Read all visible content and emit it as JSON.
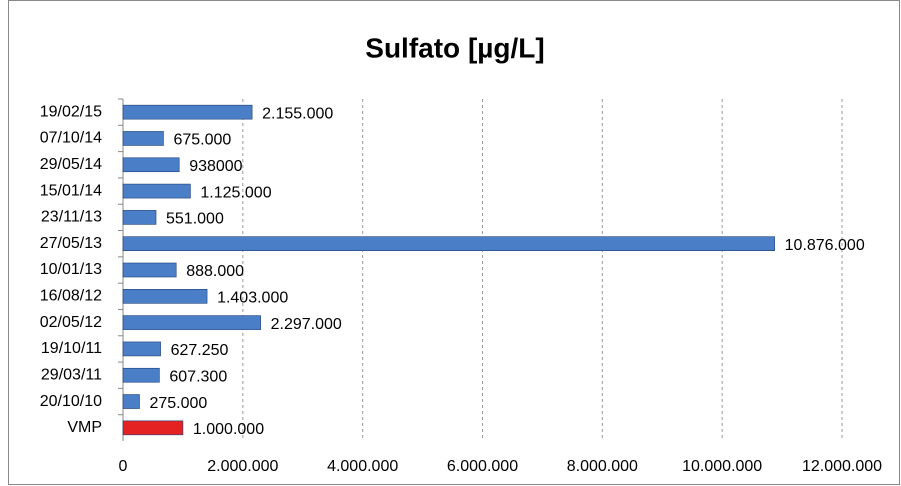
{
  "chart_data": {
    "type": "bar",
    "orientation": "horizontal",
    "title": "Sulfato [µg/L]",
    "categories": [
      "19/02/15",
      "07/10/14",
      "29/05/14",
      "15/01/14",
      "23/11/13",
      "27/05/13",
      "10/01/13",
      "16/08/12",
      "02/05/12",
      "19/10/11",
      "29/03/11",
      "20/10/10",
      "VMP"
    ],
    "values": [
      2155000,
      675000,
      938000,
      1125000,
      551000,
      10876000,
      888000,
      1403000,
      2297000,
      627250,
      607300,
      275000,
      1000000
    ],
    "value_labels": [
      "2.155.000",
      "675.000",
      "938000",
      "1.125.000",
      "551.000",
      "10.876.000",
      "888.000",
      "1.403.000",
      "2.297.000",
      "627.250",
      "607.300",
      "275.000",
      "1.000.000"
    ],
    "colors": [
      "#4a7fc8",
      "#4a7fc8",
      "#4a7fc8",
      "#4a7fc8",
      "#4a7fc8",
      "#4a7fc8",
      "#4a7fc8",
      "#4a7fc8",
      "#4a7fc8",
      "#4a7fc8",
      "#4a7fc8",
      "#4a7fc8",
      "#e52222"
    ],
    "xlim": [
      0,
      12000000
    ],
    "xticks": [
      0,
      {
        "value": 2000000,
        "label": "2.000.000"
      },
      {
        "value": 4000000,
        "label": "4.000.000"
      },
      {
        "value": 6000000,
        "label": "6.000.000"
      },
      {
        "value": 8000000,
        "label": "8.000.000"
      },
      {
        "value": 10000000,
        "label": "10.000.000"
      },
      {
        "value": 12000000,
        "label": "12.000.000"
      }
    ],
    "grid": true
  }
}
